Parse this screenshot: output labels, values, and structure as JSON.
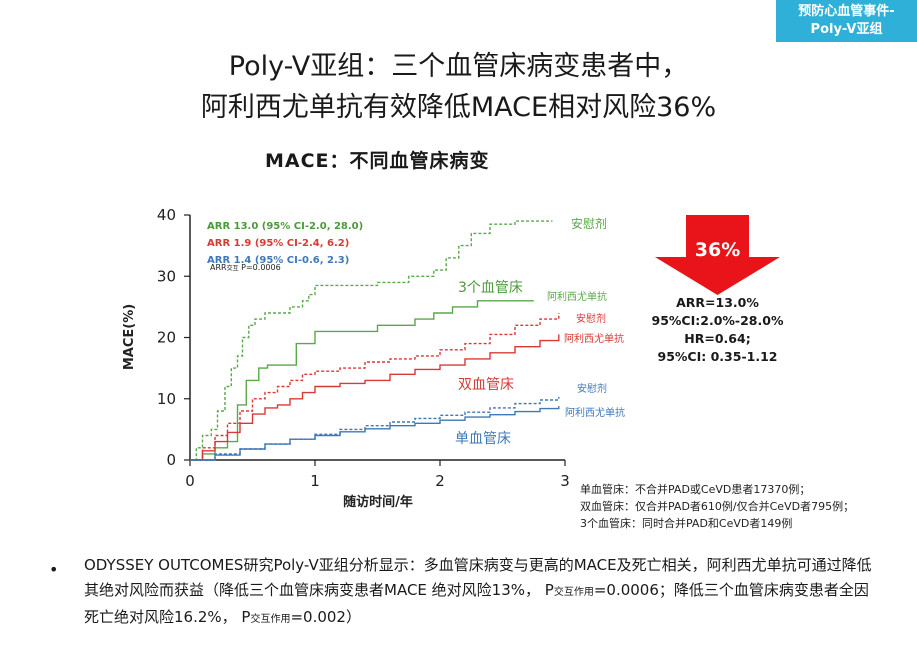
{
  "corner_tag": {
    "line1": "预防心血管事件-",
    "line2": "Poly-V亚组"
  },
  "title": {
    "line1": "Poly-V亚组：三个血管床病变患者中，",
    "line2": "阿利西尤单抗有效降低MACE相对风险36%"
  },
  "arrow": {
    "label": "36%",
    "color": "#e8141a"
  },
  "stats": [
    "ARR=13.0%",
    "95%CI:2.0%-28.0%",
    "HR=0.64;",
    "95%CI: 0.35-1.12"
  ],
  "footnotes": [
    "单血管床：不合并PAD或CeVD患者17370例；",
    "双血管床：仅合并PAD者610例/仅合并CeVD者795例；",
    "3个血管床：同时合并PAD和CeVD者149例"
  ],
  "bullet": {
    "part1": "ODYSSEY OUTCOMES研究Poly-V亚组分析显示：多血管床病变与更高的MACE及死亡相关，阿利西尤单抗可通过降低其绝对风险而获益（降低三个血管床病变患者MACE 绝对风险13%， P",
    "sub1": "交互作用",
    "part2": "=0.0006；降低三个血管床病变患者全因死亡绝对风险16.2%， P",
    "sub2": "交互作用",
    "part3": "=0.002）"
  },
  "chart_data": {
    "type": "line",
    "title": "MACE：不同血管床病变",
    "xlabel": "随访时间/年",
    "ylabel": "MACE(%)",
    "xlim": [
      0,
      3
    ],
    "ylim": [
      0,
      40
    ],
    "xticks": [
      0,
      1,
      2,
      3
    ],
    "yticks": [
      0,
      10,
      20,
      30,
      40
    ],
    "annotations": {
      "arr": [
        {
          "text": "ARR 13.0 (95% CI-2.0, 28.0)",
          "color": "#4c9a3c"
        },
        {
          "text": "ARR 1.9 (95% CI-2.4, 6.2)",
          "color": "#d83a36"
        },
        {
          "text": "ARR 1.4 (95% CI-0.6, 2.3)",
          "color": "#3f78b8"
        }
      ],
      "interaction_main": "ARR",
      "interaction_sub": "交互",
      "interaction_p": " P=0.0006"
    },
    "group_labels": [
      {
        "text": "3个血管床",
        "color": "#4c9a3c"
      },
      {
        "text": "双血管床",
        "color": "#d83a36"
      },
      {
        "text": "单血管床",
        "color": "#3f78b8"
      }
    ],
    "series": [
      {
        "name": "安慰剂",
        "group": "3个血管床",
        "style": "dashed",
        "color": "#5aa84a",
        "points": [
          [
            0,
            0
          ],
          [
            0.05,
            2
          ],
          [
            0.1,
            4
          ],
          [
            0.17,
            5
          ],
          [
            0.22,
            8
          ],
          [
            0.28,
            12
          ],
          [
            0.33,
            15
          ],
          [
            0.38,
            17
          ],
          [
            0.42,
            20
          ],
          [
            0.47,
            22
          ],
          [
            0.52,
            23
          ],
          [
            0.6,
            24
          ],
          [
            0.7,
            24
          ],
          [
            0.8,
            25
          ],
          [
            0.9,
            26
          ],
          [
            0.95,
            27
          ],
          [
            1.0,
            28.5
          ],
          [
            1.2,
            28.5
          ],
          [
            1.5,
            29
          ],
          [
            1.75,
            30
          ],
          [
            1.95,
            31
          ],
          [
            2.05,
            33
          ],
          [
            2.15,
            35
          ],
          [
            2.25,
            37
          ],
          [
            2.4,
            38.5
          ],
          [
            2.6,
            39
          ],
          [
            2.9,
            39
          ]
        ]
      },
      {
        "name": "阿利西尤单抗",
        "group": "3个血管床",
        "style": "solid",
        "color": "#5aa84a",
        "points": [
          [
            0,
            0
          ],
          [
            0.1,
            1
          ],
          [
            0.2,
            2
          ],
          [
            0.3,
            3
          ],
          [
            0.38,
            9
          ],
          [
            0.45,
            13
          ],
          [
            0.55,
            15
          ],
          [
            0.62,
            15.5
          ],
          [
            0.75,
            15.5
          ],
          [
            0.85,
            19
          ],
          [
            1.0,
            21
          ],
          [
            1.2,
            21
          ],
          [
            1.5,
            22
          ],
          [
            1.8,
            23
          ],
          [
            1.95,
            24
          ],
          [
            2.1,
            25
          ],
          [
            2.3,
            26
          ],
          [
            2.75,
            26
          ]
        ]
      },
      {
        "name": "安慰剂",
        "group": "双血管床",
        "style": "dashed",
        "color": "#d83a36",
        "points": [
          [
            0,
            0
          ],
          [
            0.1,
            2
          ],
          [
            0.2,
            4
          ],
          [
            0.3,
            6
          ],
          [
            0.4,
            8
          ],
          [
            0.5,
            10
          ],
          [
            0.6,
            11
          ],
          [
            0.7,
            12
          ],
          [
            0.8,
            13
          ],
          [
            0.9,
            14
          ],
          [
            1.0,
            14.5
          ],
          [
            1.2,
            15
          ],
          [
            1.4,
            16
          ],
          [
            1.6,
            16.5
          ],
          [
            1.8,
            17
          ],
          [
            2.0,
            18
          ],
          [
            2.2,
            19
          ],
          [
            2.4,
            20.5
          ],
          [
            2.6,
            22
          ],
          [
            2.8,
            23
          ],
          [
            2.95,
            24
          ]
        ]
      },
      {
        "name": "阿利西尤单抗",
        "group": "双血管床",
        "style": "solid",
        "color": "#d83a36",
        "points": [
          [
            0,
            0
          ],
          [
            0.1,
            1.5
          ],
          [
            0.2,
            3
          ],
          [
            0.3,
            4.5
          ],
          [
            0.4,
            6
          ],
          [
            0.5,
            7.5
          ],
          [
            0.6,
            8.5
          ],
          [
            0.7,
            9
          ],
          [
            0.8,
            10
          ],
          [
            0.9,
            11
          ],
          [
            1.0,
            12
          ],
          [
            1.2,
            12.5
          ],
          [
            1.4,
            13
          ],
          [
            1.6,
            14
          ],
          [
            1.8,
            14.8
          ],
          [
            2.0,
            15.5
          ],
          [
            2.2,
            16.5
          ],
          [
            2.4,
            17.5
          ],
          [
            2.6,
            18.5
          ],
          [
            2.8,
            19.5
          ],
          [
            2.95,
            20.5
          ]
        ]
      },
      {
        "name": "安慰剂",
        "group": "单血管床",
        "style": "dashed",
        "color": "#3f78b8",
        "points": [
          [
            0,
            0
          ],
          [
            0.2,
            1
          ],
          [
            0.4,
            1.8
          ],
          [
            0.6,
            2.6
          ],
          [
            0.8,
            3.4
          ],
          [
            1.0,
            4.2
          ],
          [
            1.2,
            5
          ],
          [
            1.4,
            5.6
          ],
          [
            1.6,
            6.2
          ],
          [
            1.8,
            6.8
          ],
          [
            2.0,
            7.3
          ],
          [
            2.2,
            7.8
          ],
          [
            2.4,
            8.5
          ],
          [
            2.6,
            9.2
          ],
          [
            2.8,
            9.8
          ],
          [
            2.95,
            10.3
          ]
        ]
      },
      {
        "name": "阿利西尤单抗",
        "group": "单血管床",
        "style": "solid",
        "color": "#3f78b8",
        "points": [
          [
            0,
            0
          ],
          [
            0.2,
            0.8
          ],
          [
            0.4,
            1.8
          ],
          [
            0.6,
            2.6
          ],
          [
            0.8,
            3.4
          ],
          [
            1.0,
            4
          ],
          [
            1.2,
            4.6
          ],
          [
            1.4,
            5.1
          ],
          [
            1.6,
            5.6
          ],
          [
            1.8,
            6
          ],
          [
            2.0,
            6.5
          ],
          [
            2.2,
            7
          ],
          [
            2.4,
            7.4
          ],
          [
            2.6,
            7.9
          ],
          [
            2.8,
            8.4
          ],
          [
            2.95,
            8.8
          ]
        ]
      }
    ]
  }
}
